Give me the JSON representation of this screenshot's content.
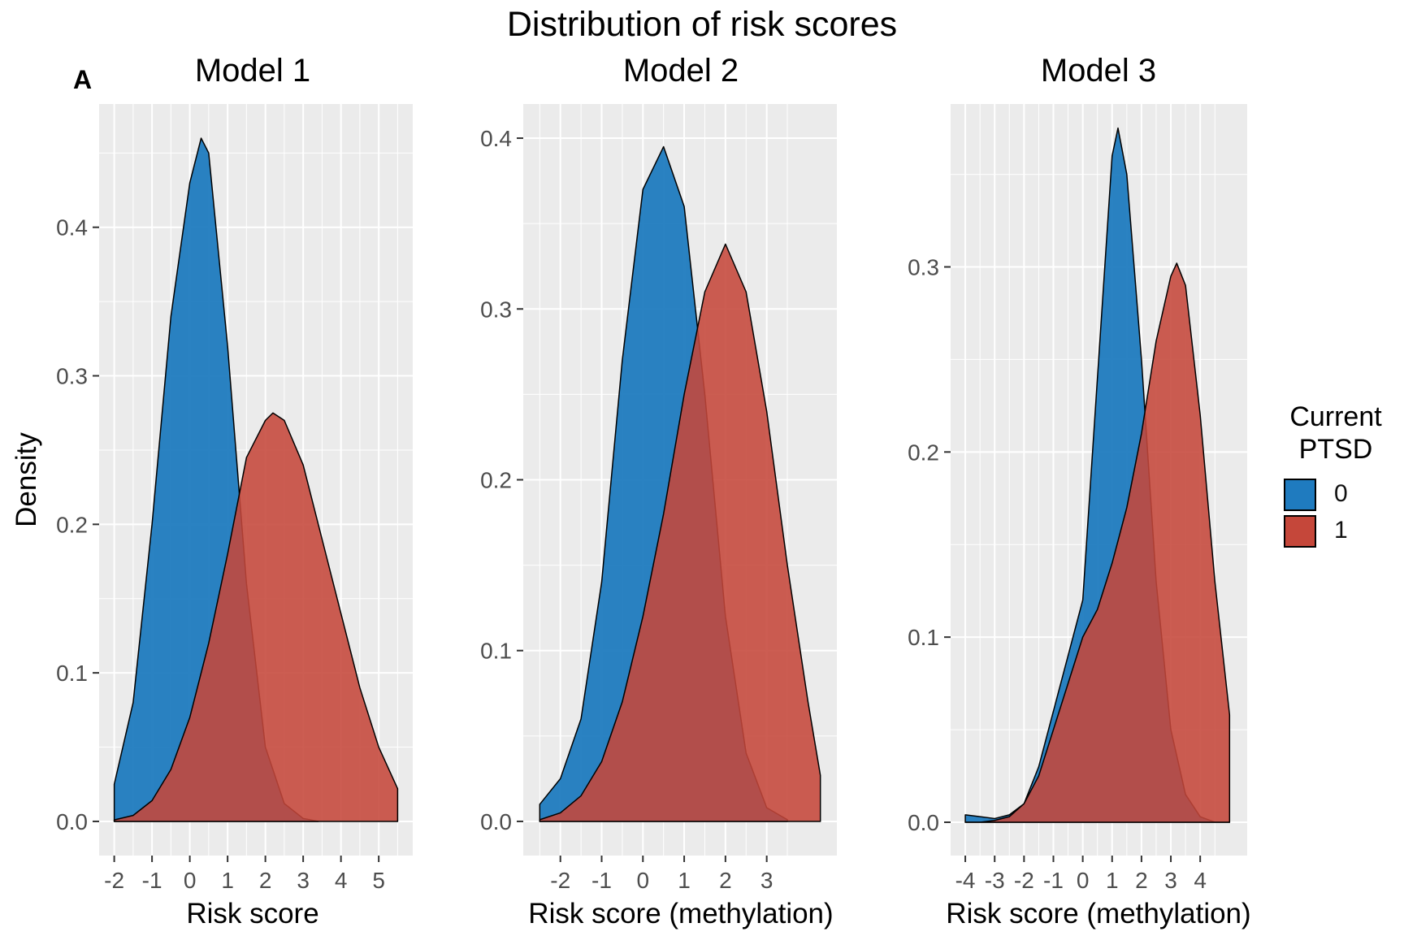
{
  "title": "Distribution of risk scores",
  "panel_tag": "A",
  "legend": {
    "title_lines": [
      "Current",
      "PTSD"
    ],
    "items": [
      {
        "label": "0",
        "color": "#1f7bbf"
      },
      {
        "label": "1",
        "color": "#c5473a"
      }
    ]
  },
  "colors": {
    "panel_bg": "#ebebeb",
    "grid": "#ffffff",
    "overlap": "#9e4a43"
  },
  "chart_data": [
    {
      "type": "area",
      "title": "Model 1",
      "xlabel": "Risk score",
      "ylabel": "Density",
      "grid": true,
      "legend_position": "right",
      "xlim": [
        -2.4,
        5.9
      ],
      "ylim": [
        -0.023,
        0.483
      ],
      "xticks": [
        -2,
        -1,
        0,
        1,
        2,
        3,
        4,
        5
      ],
      "xtick_labels": [
        "-2",
        "-1",
        "0",
        "1",
        "2",
        "3",
        "4",
        "5"
      ],
      "yticks": [
        0.0,
        0.1,
        0.2,
        0.3,
        0.4
      ],
      "ytick_labels": [
        "0.0",
        "0.1",
        "0.2",
        "0.3",
        "0.4"
      ],
      "series": [
        {
          "label": "0",
          "x": [
            -2,
            -1.5,
            -1,
            -0.5,
            0,
            0.3,
            0.5,
            1,
            1.5,
            2,
            2.5,
            3,
            3.4
          ],
          "y": [
            0.025,
            0.08,
            0.2,
            0.34,
            0.43,
            0.46,
            0.45,
            0.32,
            0.16,
            0.05,
            0.012,
            0.002,
            0.0
          ]
        },
        {
          "label": "1",
          "x": [
            -2,
            -1.5,
            -1,
            -0.5,
            0,
            0.5,
            1,
            1.5,
            2,
            2.2,
            2.5,
            3,
            3.5,
            4,
            4.5,
            5,
            5.5
          ],
          "y": [
            0.001,
            0.004,
            0.014,
            0.035,
            0.07,
            0.12,
            0.18,
            0.245,
            0.27,
            0.275,
            0.27,
            0.24,
            0.19,
            0.14,
            0.09,
            0.05,
            0.022
          ]
        }
      ]
    },
    {
      "type": "area",
      "title": "Model 2",
      "xlabel": "Risk score (methylation)",
      "ylabel": "",
      "grid": true,
      "xlim": [
        -2.9,
        4.7
      ],
      "ylim": [
        -0.02,
        0.42
      ],
      "xticks": [
        -2,
        -1,
        0,
        1,
        2,
        3
      ],
      "xtick_labels": [
        "-2",
        "-1",
        "0",
        "1",
        "2",
        "3"
      ],
      "yticks": [
        0.0,
        0.1,
        0.2,
        0.3,
        0.4
      ],
      "ytick_labels": [
        "0.0",
        "0.1",
        "0.2",
        "0.3",
        "0.4"
      ],
      "series": [
        {
          "label": "0",
          "x": [
            -2.5,
            -2,
            -1.5,
            -1,
            -0.5,
            0,
            0.5,
            1,
            1.5,
            2,
            2.5,
            3,
            3.5
          ],
          "y": [
            0.01,
            0.025,
            0.06,
            0.14,
            0.27,
            0.37,
            0.395,
            0.36,
            0.25,
            0.12,
            0.04,
            0.008,
            0.001
          ]
        },
        {
          "label": "1",
          "x": [
            -2.5,
            -2,
            -1.5,
            -1,
            -0.5,
            0,
            0.5,
            1,
            1.5,
            2,
            2.5,
            3,
            3.5,
            4,
            4.3
          ],
          "y": [
            0.001,
            0.005,
            0.015,
            0.035,
            0.07,
            0.12,
            0.18,
            0.25,
            0.31,
            0.338,
            0.31,
            0.24,
            0.15,
            0.07,
            0.027
          ]
        }
      ]
    },
    {
      "type": "area",
      "title": "Model 3",
      "xlabel": "Risk score (methylation)",
      "ylabel": "",
      "grid": true,
      "xlim": [
        -4.5,
        5.6
      ],
      "ylim": [
        -0.018,
        0.388
      ],
      "xticks": [
        -4,
        -3,
        -2,
        -1,
        0,
        1,
        2,
        3,
        4
      ],
      "xtick_labels": [
        "-4",
        "-3",
        "-2",
        "-1",
        "0",
        "1",
        "2",
        "3",
        "4"
      ],
      "yticks": [
        0.0,
        0.1,
        0.2,
        0.3
      ],
      "ytick_labels": [
        "0.0",
        "0.1",
        "0.2",
        "0.3"
      ],
      "series": [
        {
          "label": "0",
          "x": [
            -4,
            -3.5,
            -3,
            -2.5,
            -2,
            -1.5,
            -1,
            -0.5,
            0,
            0.5,
            1,
            1.2,
            1.5,
            2,
            2.5,
            3,
            3.5,
            4,
            4.5,
            5
          ],
          "y": [
            0.004,
            0.003,
            0.002,
            0.004,
            0.01,
            0.03,
            0.06,
            0.09,
            0.12,
            0.24,
            0.36,
            0.375,
            0.35,
            0.25,
            0.13,
            0.05,
            0.015,
            0.003,
            0.0,
            0.0
          ]
        },
        {
          "label": "1",
          "x": [
            -4,
            -3.5,
            -3,
            -2.5,
            -2,
            -1.5,
            -1,
            -0.5,
            0,
            0.5,
            1,
            1.5,
            2,
            2.5,
            3,
            3.2,
            3.5,
            4,
            4.5,
            5
          ],
          "y": [
            0.0,
            0.0,
            0.001,
            0.003,
            0.01,
            0.025,
            0.05,
            0.075,
            0.1,
            0.115,
            0.14,
            0.17,
            0.21,
            0.26,
            0.295,
            0.302,
            0.29,
            0.22,
            0.13,
            0.058
          ]
        }
      ]
    }
  ]
}
